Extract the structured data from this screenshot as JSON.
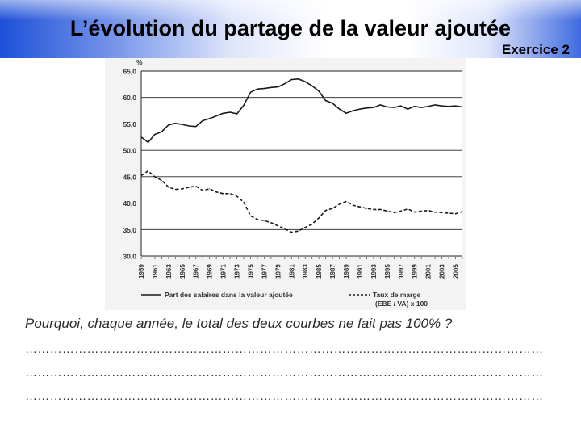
{
  "slide": {
    "title": "L’évolution du partage de la valeur ajoutée",
    "exercise_label": "Exercice 2",
    "question": "Pourquoi, chaque année, le total des deux courbes ne fait pas 100% ?",
    "answer_lines": [
      "………………………………………………………………………………………………………………",
      "………………………………………………………………………………………………………………",
      "………………………………………………………………………………………………………………"
    ]
  },
  "chart_data": {
    "type": "line",
    "unit_label": "%",
    "ylim": [
      30,
      65
    ],
    "xlim": [
      1959,
      2006
    ],
    "yticks": [
      "30,0",
      "35,0",
      "40,0",
      "45,0",
      "50,0",
      "55,0",
      "60,0",
      "65,0"
    ],
    "xticks": [
      "1959",
      "1961",
      "1963",
      "1965",
      "1967",
      "1969",
      "1971",
      "1973",
      "1975",
      "1977",
      "1979",
      "1981",
      "1983",
      "1985",
      "1987",
      "1989",
      "1991",
      "1993",
      "1995",
      "1997",
      "1999",
      "2001",
      "2003",
      "2005"
    ],
    "grid": "horizontal",
    "legend_position": "bottom",
    "series": [
      {
        "name": "Part des salaires  dans la valeur ajoutée",
        "style": "solid",
        "points": [
          [
            1959,
            52.5
          ],
          [
            1960,
            51.5
          ],
          [
            1961,
            53.0
          ],
          [
            1962,
            53.5
          ],
          [
            1963,
            54.8
          ],
          [
            1964,
            55.1
          ],
          [
            1965,
            54.9
          ],
          [
            1966,
            54.6
          ],
          [
            1967,
            54.5
          ],
          [
            1968,
            55.6
          ],
          [
            1969,
            56.0
          ],
          [
            1970,
            56.5
          ],
          [
            1971,
            57.0
          ],
          [
            1972,
            57.2
          ],
          [
            1973,
            56.9
          ],
          [
            1974,
            58.5
          ],
          [
            1975,
            61.0
          ],
          [
            1976,
            61.6
          ],
          [
            1977,
            61.7
          ],
          [
            1978,
            61.9
          ],
          [
            1979,
            62.0
          ],
          [
            1980,
            62.6
          ],
          [
            1981,
            63.4
          ],
          [
            1982,
            63.5
          ],
          [
            1983,
            63.0
          ],
          [
            1984,
            62.2
          ],
          [
            1985,
            61.2
          ],
          [
            1986,
            59.4
          ],
          [
            1987,
            58.9
          ],
          [
            1988,
            57.8
          ],
          [
            1989,
            57.0
          ],
          [
            1990,
            57.5
          ],
          [
            1991,
            57.8
          ],
          [
            1992,
            58.0
          ],
          [
            1993,
            58.1
          ],
          [
            1994,
            58.6
          ],
          [
            1995,
            58.2
          ],
          [
            1996,
            58.1
          ],
          [
            1997,
            58.4
          ],
          [
            1998,
            57.8
          ],
          [
            1999,
            58.3
          ],
          [
            2000,
            58.1
          ],
          [
            2001,
            58.3
          ],
          [
            2002,
            58.6
          ],
          [
            2003,
            58.4
          ],
          [
            2004,
            58.3
          ],
          [
            2005,
            58.4
          ],
          [
            2006,
            58.2
          ]
        ]
      },
      {
        "name": "Taux de marge (EBE / VA) x 100",
        "style": "dashed",
        "points": [
          [
            1959,
            45.2
          ],
          [
            1960,
            46.1
          ],
          [
            1961,
            45.0
          ],
          [
            1962,
            44.3
          ],
          [
            1963,
            43.0
          ],
          [
            1964,
            42.6
          ],
          [
            1965,
            42.7
          ],
          [
            1966,
            43.0
          ],
          [
            1967,
            43.2
          ],
          [
            1968,
            42.4
          ],
          [
            1969,
            42.7
          ],
          [
            1970,
            42.1
          ],
          [
            1971,
            41.8
          ],
          [
            1972,
            41.8
          ],
          [
            1973,
            41.3
          ],
          [
            1974,
            40.2
          ],
          [
            1975,
            37.6
          ],
          [
            1976,
            36.9
          ],
          [
            1977,
            36.7
          ],
          [
            1978,
            36.3
          ],
          [
            1979,
            35.7
          ],
          [
            1980,
            35.1
          ],
          [
            1981,
            34.5
          ],
          [
            1982,
            34.7
          ],
          [
            1983,
            35.4
          ],
          [
            1984,
            36.0
          ],
          [
            1985,
            37.2
          ],
          [
            1986,
            38.6
          ],
          [
            1987,
            39.0
          ],
          [
            1988,
            39.8
          ],
          [
            1989,
            40.3
          ],
          [
            1990,
            39.6
          ],
          [
            1991,
            39.3
          ],
          [
            1992,
            39.0
          ],
          [
            1993,
            38.8
          ],
          [
            1994,
            38.8
          ],
          [
            1995,
            38.5
          ],
          [
            1996,
            38.2
          ],
          [
            1997,
            38.5
          ],
          [
            1998,
            38.9
          ],
          [
            1999,
            38.3
          ],
          [
            2000,
            38.5
          ],
          [
            2001,
            38.6
          ],
          [
            2002,
            38.3
          ],
          [
            2003,
            38.2
          ],
          [
            2004,
            38.1
          ],
          [
            2005,
            38.0
          ],
          [
            2006,
            38.4
          ]
        ]
      }
    ]
  }
}
